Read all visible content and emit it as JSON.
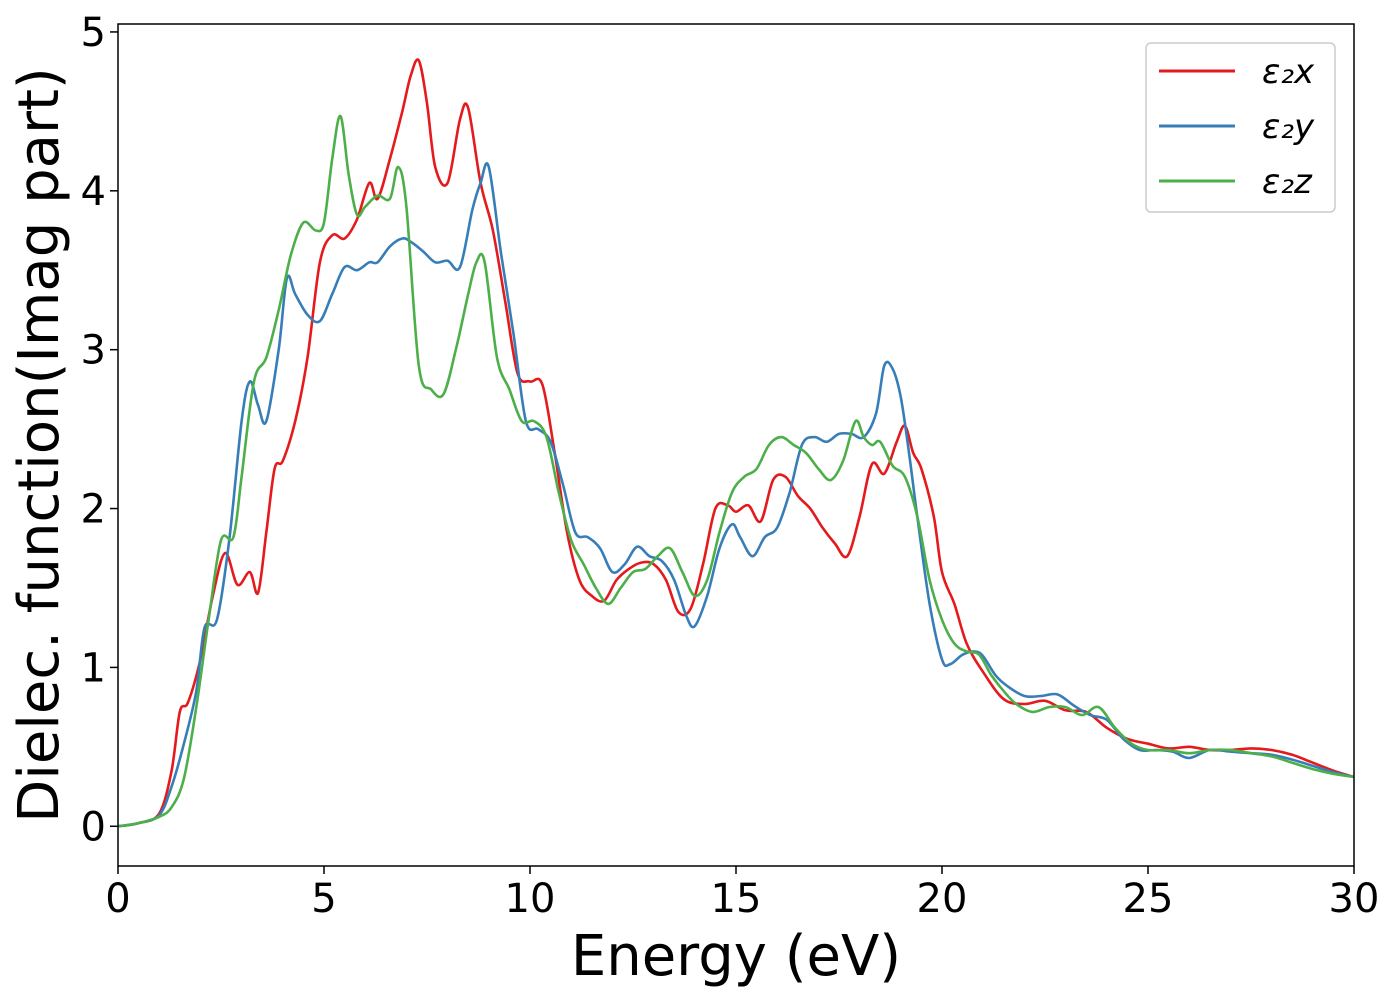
{
  "chart_data": {
    "type": "line",
    "title": "",
    "xlabel": "Energy (eV)",
    "ylabel": "Dielec. function(Imag part)",
    "xlim": [
      0,
      30
    ],
    "ylim": [
      -0.25,
      5.05
    ],
    "xticks": [
      0,
      5,
      10,
      15,
      20,
      25,
      30
    ],
    "yticks": [
      0,
      1,
      2,
      3,
      4,
      5
    ],
    "grid": false,
    "legend_position": "top-right",
    "series": [
      {
        "name": "ε₂x",
        "color": "#e41a1c",
        "x": [
          0,
          0.5,
          1.0,
          1.3,
          1.5,
          1.7,
          2.0,
          2.3,
          2.6,
          2.9,
          3.2,
          3.4,
          3.6,
          3.8,
          4.0,
          4.3,
          4.6,
          4.9,
          5.2,
          5.5,
          5.8,
          6.1,
          6.3,
          6.6,
          6.9,
          7.1,
          7.3,
          7.5,
          7.7,
          8.0,
          8.3,
          8.5,
          8.8,
          9.1,
          9.4,
          9.7,
          10.0,
          10.3,
          10.6,
          10.9,
          11.2,
          11.5,
          11.8,
          12.1,
          12.4,
          12.7,
          13.0,
          13.3,
          13.6,
          13.9,
          14.2,
          14.5,
          14.8,
          15.0,
          15.3,
          15.6,
          15.9,
          16.2,
          16.5,
          16.8,
          17.1,
          17.4,
          17.7,
          18.0,
          18.3,
          18.6,
          18.9,
          19.1,
          19.3,
          19.5,
          19.8,
          20.0,
          20.3,
          20.6,
          21.0,
          21.5,
          22.0,
          22.5,
          23.0,
          23.5,
          24.0,
          24.5,
          25.0,
          25.5,
          26.0,
          26.5,
          27.0,
          27.5,
          28.0,
          28.5,
          29.0,
          29.5,
          30.0
        ],
        "y": [
          0,
          0.02,
          0.08,
          0.35,
          0.72,
          0.78,
          1.05,
          1.45,
          1.72,
          1.52,
          1.6,
          1.47,
          1.85,
          2.25,
          2.3,
          2.55,
          2.95,
          3.55,
          3.72,
          3.7,
          3.82,
          4.05,
          3.95,
          4.2,
          4.5,
          4.72,
          4.82,
          4.55,
          4.15,
          4.05,
          4.45,
          4.52,
          4.05,
          3.75,
          3.3,
          2.85,
          2.8,
          2.78,
          2.35,
          1.85,
          1.55,
          1.45,
          1.42,
          1.55,
          1.62,
          1.66,
          1.65,
          1.55,
          1.35,
          1.37,
          1.65,
          2.0,
          2.02,
          1.98,
          2.02,
          1.92,
          2.18,
          2.2,
          2.08,
          2.0,
          1.88,
          1.78,
          1.7,
          1.95,
          2.28,
          2.22,
          2.42,
          2.52,
          2.35,
          2.25,
          1.95,
          1.6,
          1.4,
          1.15,
          0.97,
          0.8,
          0.77,
          0.79,
          0.73,
          0.72,
          0.62,
          0.55,
          0.52,
          0.49,
          0.5,
          0.48,
          0.48,
          0.49,
          0.48,
          0.45,
          0.4,
          0.35,
          0.31
        ]
      },
      {
        "name": "ε₂y",
        "color": "#377eb8",
        "x": [
          0,
          0.5,
          1.0,
          1.3,
          1.6,
          1.9,
          2.1,
          2.4,
          2.7,
          3.0,
          3.2,
          3.4,
          3.6,
          3.9,
          4.1,
          4.3,
          4.6,
          4.9,
          5.2,
          5.5,
          5.8,
          6.1,
          6.3,
          6.6,
          6.9,
          7.1,
          7.4,
          7.7,
          8.0,
          8.3,
          8.6,
          8.8,
          9.0,
          9.3,
          9.6,
          9.9,
          10.2,
          10.5,
          10.8,
          11.1,
          11.4,
          11.7,
          12.0,
          12.3,
          12.6,
          12.9,
          13.2,
          13.5,
          13.8,
          14.0,
          14.3,
          14.6,
          14.9,
          15.1,
          15.4,
          15.7,
          16.0,
          16.3,
          16.6,
          16.9,
          17.2,
          17.5,
          17.8,
          18.1,
          18.4,
          18.6,
          18.8,
          19.0,
          19.2,
          19.4,
          19.7,
          20.0,
          20.2,
          20.5,
          20.8,
          21.0,
          21.3,
          21.6,
          22.0,
          22.4,
          22.8,
          23.2,
          23.6,
          24.0,
          24.4,
          24.8,
          25.2,
          25.6,
          26.0,
          26.5,
          27.0,
          27.5,
          28.0,
          28.5,
          29.0,
          29.5,
          30.0
        ],
        "y": [
          0,
          0.02,
          0.07,
          0.25,
          0.52,
          0.85,
          1.25,
          1.3,
          1.8,
          2.55,
          2.8,
          2.65,
          2.55,
          3.0,
          3.45,
          3.35,
          3.22,
          3.18,
          3.35,
          3.52,
          3.5,
          3.55,
          3.55,
          3.65,
          3.7,
          3.68,
          3.62,
          3.55,
          3.56,
          3.52,
          3.88,
          4.05,
          4.15,
          3.6,
          3.1,
          2.55,
          2.5,
          2.42,
          2.15,
          1.85,
          1.82,
          1.75,
          1.6,
          1.65,
          1.76,
          1.7,
          1.67,
          1.55,
          1.32,
          1.26,
          1.45,
          1.75,
          1.9,
          1.82,
          1.7,
          1.82,
          1.88,
          2.1,
          2.4,
          2.45,
          2.42,
          2.47,
          2.47,
          2.45,
          2.6,
          2.9,
          2.88,
          2.7,
          2.35,
          1.95,
          1.4,
          1.05,
          1.02,
          1.08,
          1.1,
          1.07,
          0.95,
          0.88,
          0.82,
          0.82,
          0.83,
          0.76,
          0.7,
          0.67,
          0.55,
          0.48,
          0.48,
          0.47,
          0.43,
          0.48,
          0.47,
          0.46,
          0.45,
          0.42,
          0.38,
          0.34,
          0.31
        ]
      },
      {
        "name": "ε₂z",
        "color": "#4daf4a",
        "x": [
          0,
          0.5,
          1.0,
          1.3,
          1.6,
          1.9,
          2.2,
          2.5,
          2.8,
          3.0,
          3.3,
          3.6,
          3.9,
          4.2,
          4.5,
          4.8,
          5.0,
          5.2,
          5.4,
          5.6,
          5.8,
          6.0,
          6.3,
          6.6,
          6.8,
          7.0,
          7.3,
          7.6,
          7.9,
          8.2,
          8.5,
          8.7,
          8.9,
          9.2,
          9.5,
          9.8,
          10.1,
          10.4,
          10.7,
          11.0,
          11.3,
          11.6,
          11.9,
          12.2,
          12.5,
          12.8,
          13.1,
          13.4,
          13.7,
          14.0,
          14.3,
          14.6,
          14.9,
          15.2,
          15.5,
          15.8,
          16.1,
          16.4,
          16.7,
          17.0,
          17.3,
          17.6,
          17.9,
          18.1,
          18.3,
          18.5,
          18.8,
          19.1,
          19.4,
          19.7,
          20.0,
          20.3,
          20.6,
          20.9,
          21.2,
          21.5,
          21.8,
          22.2,
          22.6,
          23.0,
          23.4,
          23.8,
          24.2,
          24.6,
          25.0,
          25.5,
          26.0,
          26.5,
          27.0,
          27.5,
          28.0,
          28.5,
          29.0,
          29.5,
          30.0
        ],
        "y": [
          0,
          0.02,
          0.06,
          0.12,
          0.3,
          0.75,
          1.3,
          1.8,
          1.82,
          2.2,
          2.8,
          2.95,
          3.25,
          3.6,
          3.8,
          3.75,
          3.8,
          4.2,
          4.47,
          4.1,
          3.85,
          3.9,
          3.97,
          3.95,
          4.15,
          3.9,
          2.9,
          2.75,
          2.72,
          3.0,
          3.35,
          3.55,
          3.55,
          2.95,
          2.75,
          2.55,
          2.55,
          2.45,
          2.1,
          1.8,
          1.65,
          1.5,
          1.4,
          1.5,
          1.6,
          1.62,
          1.7,
          1.75,
          1.6,
          1.45,
          1.55,
          1.85,
          2.1,
          2.2,
          2.25,
          2.4,
          2.45,
          2.4,
          2.35,
          2.25,
          2.18,
          2.3,
          2.55,
          2.45,
          2.4,
          2.42,
          2.27,
          2.2,
          1.95,
          1.55,
          1.3,
          1.15,
          1.1,
          1.08,
          0.95,
          0.85,
          0.77,
          0.72,
          0.75,
          0.75,
          0.7,
          0.75,
          0.62,
          0.52,
          0.48,
          0.48,
          0.46,
          0.48,
          0.48,
          0.46,
          0.44,
          0.4,
          0.36,
          0.33,
          0.31
        ]
      }
    ]
  }
}
